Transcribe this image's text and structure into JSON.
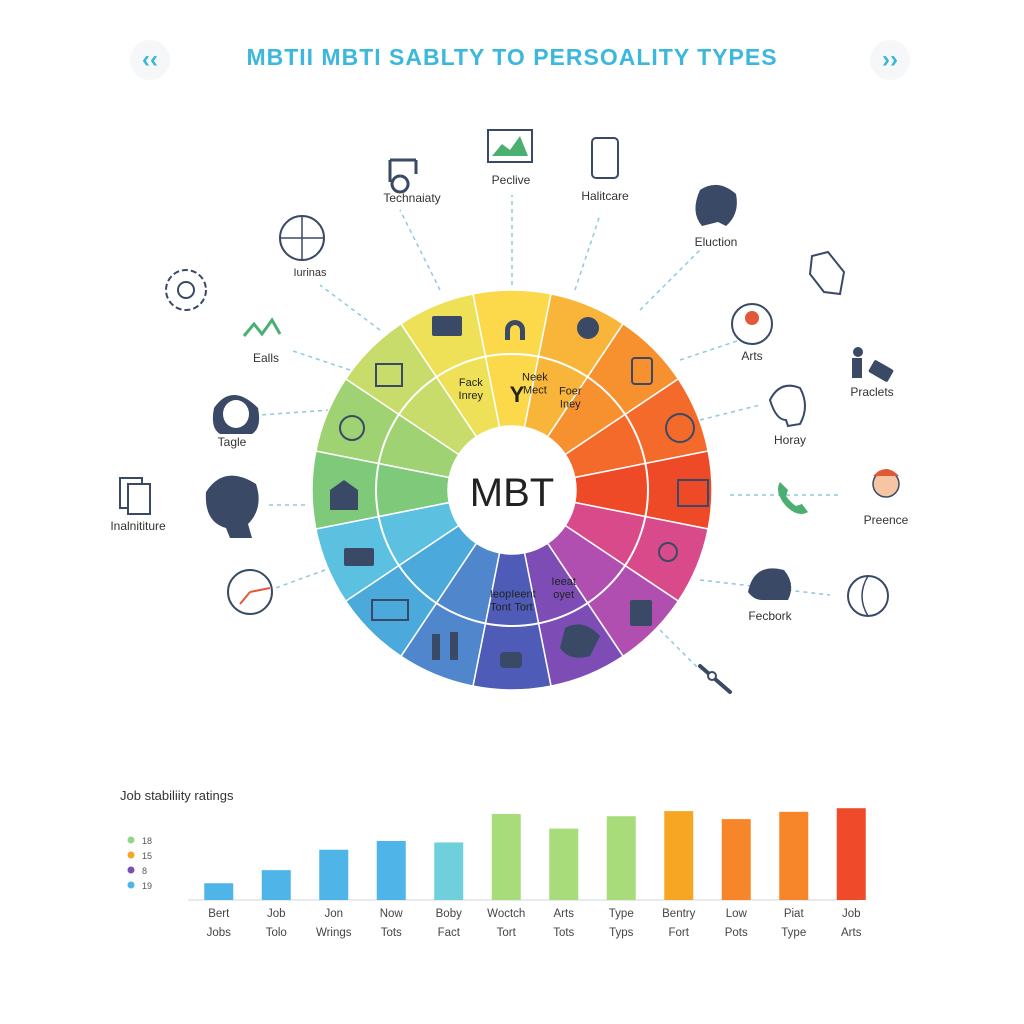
{
  "header": {
    "title": "MBTII MBTI SABLTY TO PERSOALITY TYPES",
    "prev_label": "‹‹",
    "next_label": "››"
  },
  "wheel": {
    "center_label": "MBT",
    "segment_colors": [
      "#fbd94a",
      "#f9b53a",
      "#f7902f",
      "#f46a2a",
      "#ef4a28",
      "#d94a8a",
      "#b04fb0",
      "#7d4db5",
      "#4e5cb8",
      "#4f86cc",
      "#4ca9db",
      "#5cc0e0",
      "#7ec97a",
      "#9fd272",
      "#c7dc6a",
      "#eee157"
    ],
    "inner_labels": [
      {
        "line1": "Neek",
        "line2": "Mect"
      },
      {
        "line1": "Foer",
        "line2": "Iney"
      },
      {
        "line1": "Ieop",
        "line2": "Tont"
      },
      {
        "line1": "Ieent",
        "line2": "Tort"
      },
      {
        "line1": "Ieeat",
        "line2": "oyet"
      },
      {
        "line1": "Fack",
        "line2": "Inrey"
      }
    ],
    "inner_letter": "Y"
  },
  "categories": [
    {
      "label": "Technaiaty",
      "icon": "crane-icon"
    },
    {
      "label": "Peclive",
      "icon": "monitor-chart-icon"
    },
    {
      "label": "Halitcare",
      "icon": "phone-device-icon"
    },
    {
      "label": "Iurinas",
      "icon": "globe-icon"
    },
    {
      "label": "Eluction",
      "icon": "head-profile-icon"
    },
    {
      "label": "Ealls",
      "icon": "bicycle-icon"
    },
    {
      "label": "Arts",
      "icon": "artist-icon"
    },
    {
      "label": "Praclets",
      "icon": "traveler-icon"
    },
    {
      "label": "Tagle",
      "icon": "woman-face-icon"
    },
    {
      "label": "Horay",
      "icon": "bald-head-icon"
    },
    {
      "label": "Inalnititure",
      "icon": "documents-icon"
    },
    {
      "label": "Preence",
      "icon": "person-avatar-icon"
    },
    {
      "label": "Fecbork",
      "icon": "woman-profile-icon"
    }
  ],
  "chart_data": {
    "type": "bar",
    "title": "Job stabiliity ratings",
    "legend": [
      {
        "label": "18",
        "color": "#8fd88a"
      },
      {
        "label": "15",
        "color": "#f7a623"
      },
      {
        "label": "8",
        "color": "#7a4fb5"
      },
      {
        "label": "19",
        "color": "#4fb4e8"
      }
    ],
    "categories": [
      {
        "line1": "Bert",
        "line2": "Jobs"
      },
      {
        "line1": "Job",
        "line2": "Tolo"
      },
      {
        "line1": "Jon",
        "line2": "Wrings"
      },
      {
        "line1": "Now",
        "line2": "Tots"
      },
      {
        "line1": "Boby",
        "line2": "Fact"
      },
      {
        "line1": "Woctch",
        "line2": "Tort"
      },
      {
        "line1": "Arts",
        "line2": "Tots"
      },
      {
        "line1": "Type",
        "line2": "Typs"
      },
      {
        "line1": "Bentry",
        "line2": "Fort"
      },
      {
        "line1": "Low",
        "line2": "Pots"
      },
      {
        "line1": "Piat",
        "line2": "Type"
      },
      {
        "line1": "Job",
        "line2": "Arts"
      }
    ],
    "values": [
      2.3,
      4.1,
      6.9,
      8.1,
      7.9,
      11.8,
      9.8,
      11.5,
      12.2,
      11.1,
      12.1,
      12.6
    ],
    "colors": [
      "#4fb4e8",
      "#4fb4e8",
      "#4fb4e8",
      "#4fb4e8",
      "#6fd0dc",
      "#a8dc7a",
      "#a8dc7a",
      "#a8dc7a",
      "#f7a623",
      "#f7852a",
      "#f7852a",
      "#ef4a2a"
    ],
    "ylim": [
      0,
      14
    ],
    "grid": false
  }
}
